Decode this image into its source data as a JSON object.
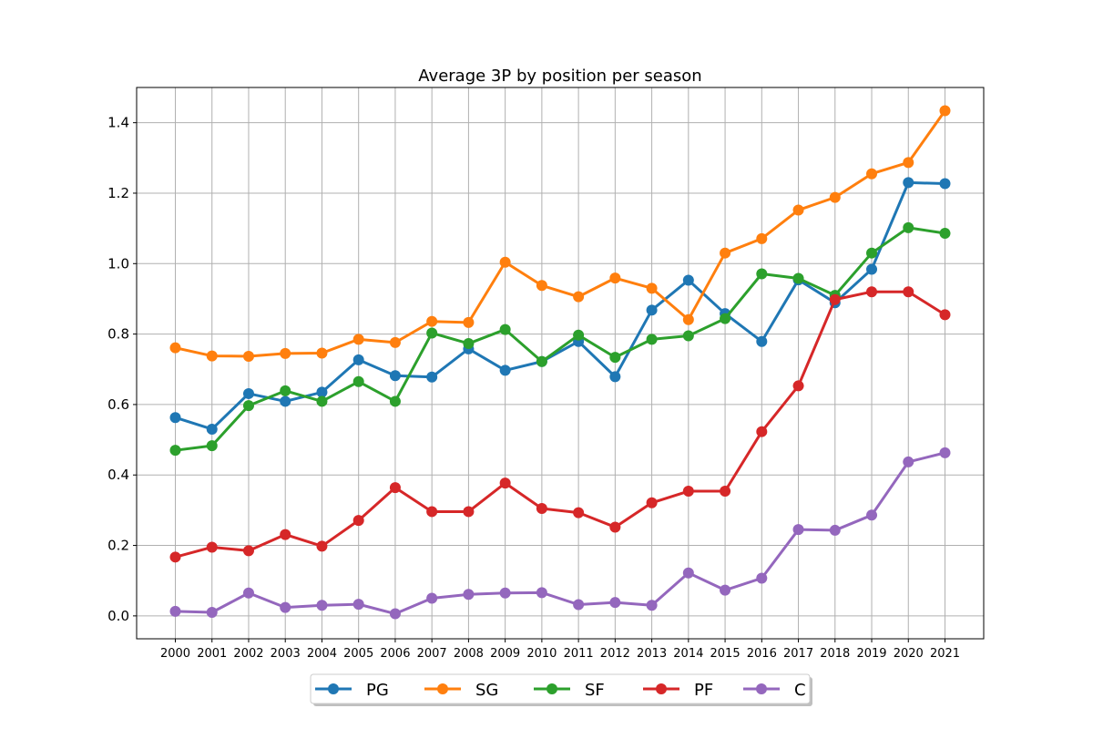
{
  "chart_data": {
    "type": "line",
    "title": "Average 3P by position per season",
    "xlabel": "",
    "ylabel": "",
    "x": [
      "2000",
      "2001",
      "2002",
      "2003",
      "2004",
      "2005",
      "2006",
      "2007",
      "2008",
      "2009",
      "2010",
      "2011",
      "2012",
      "2013",
      "2014",
      "2015",
      "2016",
      "2017",
      "2018",
      "2019",
      "2020",
      "2021"
    ],
    "ylim": [
      -0.065,
      1.5
    ],
    "yticks": [
      0.0,
      0.2,
      0.4,
      0.6,
      0.8,
      1.0,
      1.2,
      1.4
    ],
    "ytick_labels": [
      "0.0",
      "0.2",
      "0.4",
      "0.6",
      "0.8",
      "1.0",
      "1.2",
      "1.4"
    ],
    "grid": true,
    "legend_position": "bottom-center",
    "series": [
      {
        "name": "PG",
        "color": "#1f77b4",
        "values": [
          0.563,
          0.53,
          0.631,
          0.609,
          0.635,
          0.727,
          0.682,
          0.678,
          0.758,
          0.697,
          0.722,
          0.779,
          0.679,
          0.868,
          0.953,
          0.858,
          0.779,
          0.954,
          0.889,
          0.984,
          1.23,
          1.227
        ]
      },
      {
        "name": "SG",
        "color": "#ff7f0e",
        "values": [
          0.761,
          0.738,
          0.737,
          0.745,
          0.746,
          0.785,
          0.776,
          0.836,
          0.833,
          1.004,
          0.938,
          0.906,
          0.959,
          0.93,
          0.841,
          1.03,
          1.071,
          1.152,
          1.188,
          1.255,
          1.287,
          1.434
        ]
      },
      {
        "name": "SF",
        "color": "#2ca02c",
        "values": [
          0.47,
          0.483,
          0.597,
          0.639,
          0.609,
          0.665,
          0.609,
          0.803,
          0.773,
          0.813,
          0.722,
          0.797,
          0.734,
          0.785,
          0.795,
          0.844,
          0.971,
          0.958,
          0.91,
          1.03,
          1.102,
          1.086
        ]
      },
      {
        "name": "PF",
        "color": "#d62728",
        "values": [
          0.167,
          0.195,
          0.185,
          0.231,
          0.198,
          0.271,
          0.364,
          0.296,
          0.296,
          0.377,
          0.305,
          0.293,
          0.252,
          0.321,
          0.354,
          0.354,
          0.523,
          0.653,
          0.898,
          0.92,
          0.92,
          0.855
        ]
      },
      {
        "name": "C",
        "color": "#9467bd",
        "values": [
          0.013,
          0.01,
          0.065,
          0.024,
          0.03,
          0.033,
          0.006,
          0.05,
          0.061,
          0.065,
          0.066,
          0.032,
          0.038,
          0.03,
          0.122,
          0.073,
          0.107,
          0.245,
          0.243,
          0.286,
          0.437,
          0.463
        ]
      }
    ]
  }
}
